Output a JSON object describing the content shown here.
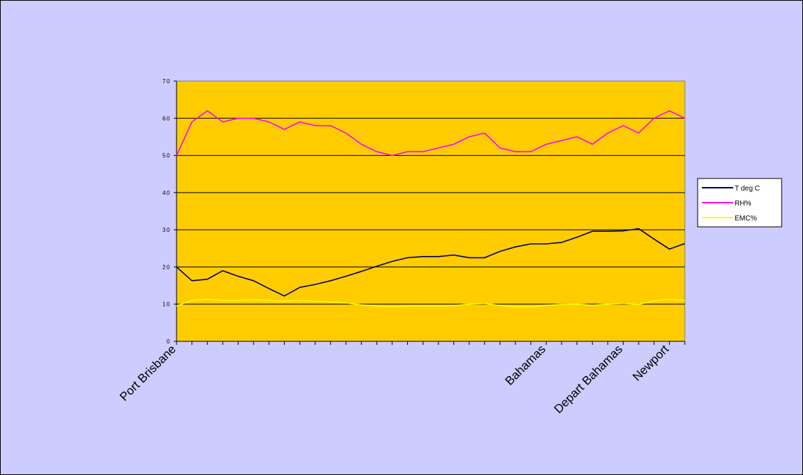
{
  "chart_data": {
    "type": "line",
    "title": "",
    "xlabel": "",
    "ylabel": "",
    "ylim": [
      0,
      70
    ],
    "yticks": [
      0,
      10,
      20,
      30,
      40,
      50,
      60,
      70
    ],
    "grid": true,
    "legend_position": "right",
    "x_tick_labels": [
      {
        "index": 0,
        "label": "Port Brisbane"
      },
      {
        "index": 24,
        "label": "Bahamas"
      },
      {
        "index": 29,
        "label": "Depart Bahamas"
      },
      {
        "index": 32,
        "label": "Newport"
      }
    ],
    "x": [
      0,
      1,
      2,
      3,
      4,
      5,
      6,
      7,
      8,
      9,
      10,
      11,
      12,
      13,
      14,
      15,
      16,
      17,
      18,
      19,
      20,
      21,
      22,
      23,
      24,
      25,
      26,
      27,
      28,
      29,
      30,
      31,
      32,
      33
    ],
    "series": [
      {
        "name": "T deg C",
        "color": "#000066",
        "values": [
          20,
          16.3,
          16.7,
          19,
          17.5,
          16.3,
          14.2,
          12.2,
          14.5,
          15.3,
          16.3,
          17.5,
          18.8,
          20.2,
          21.5,
          22.5,
          22.8,
          22.8,
          23.2,
          22.5,
          22.5,
          24.2,
          25.4,
          26.2,
          26.2,
          26.6,
          28,
          29.6,
          29.6,
          29.7,
          30.3,
          27.5,
          24.8,
          26.3
        ]
      },
      {
        "name": "RH%",
        "color": "#ff00ff",
        "values": [
          50,
          59,
          62,
          59,
          60,
          60,
          59,
          57,
          59,
          58,
          58,
          56,
          53,
          51,
          50,
          51,
          51,
          52,
          53,
          55,
          56,
          52,
          51,
          51,
          53,
          54,
          55,
          53,
          56,
          58,
          56,
          60,
          62,
          60
        ]
      },
      {
        "name": "EMC%",
        "color": "#ffff00",
        "values": [
          9.5,
          11,
          11.3,
          11,
          11,
          11.2,
          11,
          10.8,
          11,
          10.8,
          10.6,
          10.3,
          9.8,
          9.5,
          9.3,
          9.5,
          9.5,
          9.5,
          9.6,
          10,
          10.2,
          9.6,
          9.3,
          9.3,
          9.7,
          9.9,
          10,
          9.7,
          10,
          10.2,
          9.9,
          10.9,
          11.3,
          11
        ]
      }
    ]
  }
}
